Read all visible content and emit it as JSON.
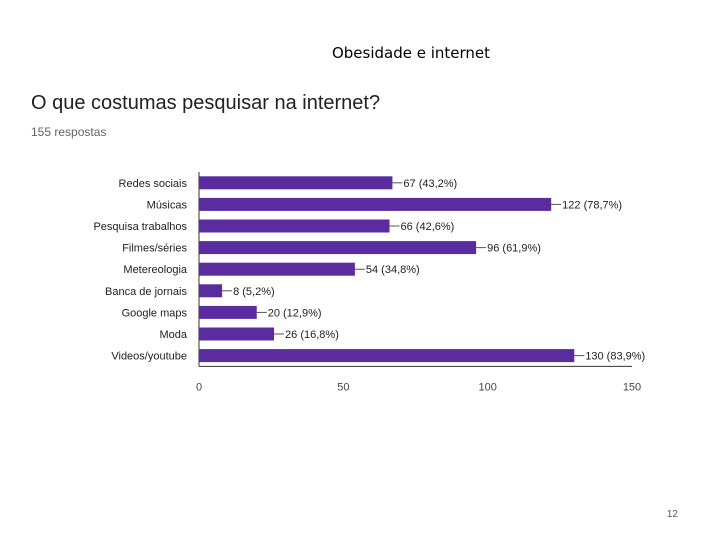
{
  "slide": {
    "title": "Obesidade e internet",
    "question": "O que costumas pesquisar na internet?",
    "responses": "155 respostas",
    "page_number": "12"
  },
  "colors": {
    "bar": "#5a2ca0",
    "axis": "#333333",
    "grid": "#e0e0e0"
  },
  "chart_data": {
    "type": "bar",
    "orientation": "horizontal",
    "categories": [
      "Redes sociais",
      "Músicas",
      "Pesquisa trabalhos",
      "Filmes/séries",
      "Metereologia",
      "Banca de jornais",
      "Google maps",
      "Moda",
      "Videos/youtube"
    ],
    "values": [
      67,
      122,
      66,
      96,
      54,
      8,
      20,
      26,
      130
    ],
    "data_labels": [
      "67 (43,2%)",
      "122 (78,7%)",
      "66 (42,6%)",
      "96 (61,9%)",
      "54 (34,8%)",
      "8 (5,2%)",
      "20 (12,9%)",
      "26 (16,8%)",
      "130 (83,9%)"
    ],
    "xlim": [
      0,
      150
    ],
    "xticks": [
      0,
      50,
      100,
      150
    ],
    "grid": false,
    "legend": "none"
  }
}
